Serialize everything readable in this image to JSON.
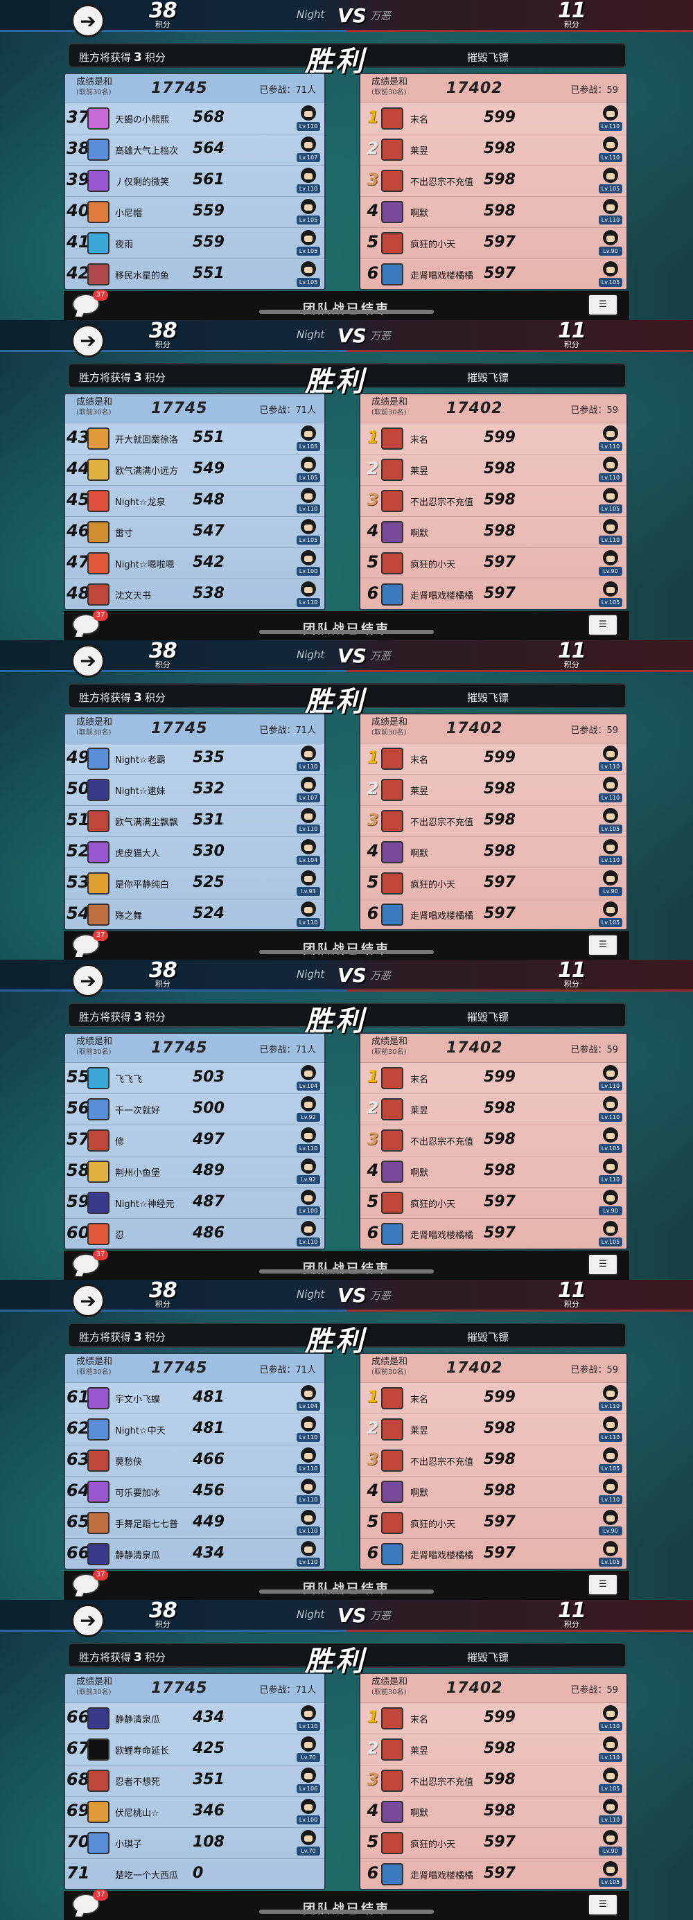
{
  "screens": [
    {
      "header": {
        "left_score": "38",
        "left_score_label": "积分",
        "left_team": "Night",
        "vs": "VS",
        "right_team": "万恶",
        "right_score": "11",
        "right_score_label": "积分"
      },
      "banner": {
        "winner_text_pre": "胜方将获得",
        "winner_points": "3",
        "winner_text_post": "积分",
        "result": "胜利",
        "right_text": "摧毁飞镖"
      },
      "left_panel": {
        "group": "成绩是和",
        "group_sub": "(取前30名)",
        "power": "17745",
        "joined": "已参战：71人",
        "rows": [
          {
            "rank": "37",
            "name": "天蝎の小熙熙",
            "power": "568",
            "level": "Lv.110",
            "avatar_color": "#c76ad6"
          },
          {
            "rank": "38",
            "name": "高雄大气上档次",
            "power": "564",
            "level": "Lv.107",
            "avatar_color": "#5a8ed8"
          },
          {
            "rank": "39",
            "name": "丿仅剩的微笑",
            "power": "561",
            "level": "Lv.110",
            "avatar_color": "#9a58d0"
          },
          {
            "rank": "40",
            "name": "小尼帽",
            "power": "559",
            "level": "Lv.105",
            "avatar_color": "#e07a3a"
          },
          {
            "rank": "41",
            "name": "夜雨",
            "power": "559",
            "level": "Lv.105",
            "avatar_color": "#3aa8d8"
          },
          {
            "rank": "42",
            "name": "移民水星的鱼",
            "power": "551",
            "level": "Lv.105",
            "avatar_color": "#b04a4a"
          }
        ]
      },
      "right_panel": {
        "group": "成绩是和",
        "group_sub": "(取前30名)",
        "power": "17402",
        "joined": "已参战：59",
        "rows": [
          {
            "rank": "1",
            "name": "末名",
            "power": "599",
            "level": "Lv.110",
            "avatar_color": "#c0463a"
          },
          {
            "rank": "2",
            "name": "莱昱",
            "power": "598",
            "level": "Lv.110",
            "avatar_color": "#c0463a"
          },
          {
            "rank": "3",
            "name": "不出忍宗不充值",
            "power": "598",
            "level": "Lv.105",
            "avatar_color": "#c0463a"
          },
          {
            "rank": "4",
            "name": "啊默",
            "power": "598",
            "level": "Lv.110",
            "avatar_color": "#7a4a9a"
          },
          {
            "rank": "5",
            "name": "疯狂的小天",
            "power": "597",
            "level": "Lv.90",
            "avatar_color": "#c0463a"
          },
          {
            "rank": "6",
            "name": "走肾唱戏楼橘橘",
            "power": "597",
            "level": "Lv.105",
            "avatar_color": "#3a7ac0"
          }
        ]
      },
      "footer": {
        "chat_badge": "37",
        "status": "团队战已结束"
      }
    },
    {
      "header": {
        "left_score": "38",
        "left_score_label": "积分",
        "left_team": "Night",
        "vs": "VS",
        "right_team": "万恶",
        "right_score": "11",
        "right_score_label": "积分"
      },
      "banner": {
        "winner_text_pre": "胜方将获得",
        "winner_points": "3",
        "winner_text_post": "积分",
        "result": "胜利",
        "right_text": "摧毁飞镖"
      },
      "left_panel": {
        "group": "成绩是和",
        "group_sub": "(取前30名)",
        "power": "17745",
        "joined": "已参战：71人",
        "rows": [
          {
            "rank": "43",
            "name": "开大就回案徐洛",
            "power": "551",
            "level": "Lv.105",
            "avatar_color": "#e09a3a"
          },
          {
            "rank": "44",
            "name": "欧气满满小远方",
            "power": "549",
            "level": "Lv.105",
            "avatar_color": "#e0b040"
          },
          {
            "rank": "45",
            "name": "Night☆龙泉",
            "power": "548",
            "level": "Lv.110",
            "avatar_color": "#e0503a"
          },
          {
            "rank": "46",
            "name": "雷寸",
            "power": "547",
            "level": "Lv.105",
            "avatar_color": "#d09030"
          },
          {
            "rank": "47",
            "name": "Night☆嗯啦嗯",
            "power": "542",
            "level": "Lv.100",
            "avatar_color": "#e05a3a"
          },
          {
            "rank": "48",
            "name": "沈文天书",
            "power": "538",
            "level": "Lv.110",
            "avatar_color": "#c0463a"
          }
        ]
      },
      "right_panel": {
        "group": "成绩是和",
        "group_sub": "(取前30名)",
        "power": "17402",
        "joined": "已参战：59",
        "rows": [
          {
            "rank": "1",
            "name": "末名",
            "power": "599",
            "level": "Lv.110",
            "avatar_color": "#c0463a"
          },
          {
            "rank": "2",
            "name": "莱昱",
            "power": "598",
            "level": "Lv.110",
            "avatar_color": "#c0463a"
          },
          {
            "rank": "3",
            "name": "不出忍宗不充值",
            "power": "598",
            "level": "Lv.105",
            "avatar_color": "#c0463a"
          },
          {
            "rank": "4",
            "name": "啊默",
            "power": "598",
            "level": "Lv.110",
            "avatar_color": "#7a4a9a"
          },
          {
            "rank": "5",
            "name": "疯狂的小天",
            "power": "597",
            "level": "Lv.90",
            "avatar_color": "#c0463a"
          },
          {
            "rank": "6",
            "name": "走肾唱戏楼橘橘",
            "power": "597",
            "level": "Lv.105",
            "avatar_color": "#3a7ac0"
          }
        ]
      },
      "footer": {
        "chat_badge": "37",
        "status": "团队战已结束"
      }
    },
    {
      "header": {
        "left_score": "38",
        "left_score_label": "积分",
        "left_team": "Night",
        "vs": "VS",
        "right_team": "万恶",
        "right_score": "11",
        "right_score_label": "积分"
      },
      "banner": {
        "winner_text_pre": "胜方将获得",
        "winner_points": "3",
        "winner_text_post": "积分",
        "result": "胜利",
        "right_text": "摧毁飞镖"
      },
      "left_panel": {
        "group": "成绩是和",
        "group_sub": "(取前30名)",
        "power": "17745",
        "joined": "已参战：71人",
        "rows": [
          {
            "rank": "49",
            "name": "Night☆老霸",
            "power": "535",
            "level": "Lv.110",
            "avatar_color": "#5a8ed8"
          },
          {
            "rank": "50",
            "name": "Night☆逮妹",
            "power": "532",
            "level": "Lv.107",
            "avatar_color": "#3a3a8a"
          },
          {
            "rank": "51",
            "name": "欧气满满尘飘飘",
            "power": "531",
            "level": "Lv.110",
            "avatar_color": "#c0463a"
          },
          {
            "rank": "52",
            "name": "虎皮猫大人",
            "power": "530",
            "level": "Lv.104",
            "avatar_color": "#9a58d0"
          },
          {
            "rank": "53",
            "name": "是你平静纯白",
            "power": "525",
            "level": "Lv.93",
            "avatar_color": "#e0a030"
          },
          {
            "rank": "54",
            "name": "殇之舞",
            "power": "524",
            "level": "Lv.110",
            "avatar_color": "#c07040"
          }
        ]
      },
      "right_panel": {
        "group": "成绩是和",
        "group_sub": "(取前30名)",
        "power": "17402",
        "joined": "已参战：59",
        "rows": [
          {
            "rank": "1",
            "name": "末名",
            "power": "599",
            "level": "Lv.110",
            "avatar_color": "#c0463a"
          },
          {
            "rank": "2",
            "name": "莱昱",
            "power": "598",
            "level": "Lv.110",
            "avatar_color": "#c0463a"
          },
          {
            "rank": "3",
            "name": "不出忍宗不充值",
            "power": "598",
            "level": "Lv.105",
            "avatar_color": "#c0463a"
          },
          {
            "rank": "4",
            "name": "啊默",
            "power": "598",
            "level": "Lv.110",
            "avatar_color": "#7a4a9a"
          },
          {
            "rank": "5",
            "name": "疯狂的小天",
            "power": "597",
            "level": "Lv.90",
            "avatar_color": "#c0463a"
          },
          {
            "rank": "6",
            "name": "走肾唱戏楼橘橘",
            "power": "597",
            "level": "Lv.105",
            "avatar_color": "#3a7ac0"
          }
        ]
      },
      "footer": {
        "chat_badge": "37",
        "status": "团队战已结束"
      }
    },
    {
      "header": {
        "left_score": "38",
        "left_score_label": "积分",
        "left_team": "Night",
        "vs": "VS",
        "right_team": "万恶",
        "right_score": "11",
        "right_score_label": "积分"
      },
      "banner": {
        "winner_text_pre": "胜方将获得",
        "winner_points": "3",
        "winner_text_post": "积分",
        "result": "胜利",
        "right_text": "摧毁飞镖"
      },
      "left_panel": {
        "group": "成绩是和",
        "group_sub": "(取前30名)",
        "power": "17745",
        "joined": "已参战：71人",
        "rows": [
          {
            "rank": "55",
            "name": "飞飞飞",
            "power": "503",
            "level": "Lv.104",
            "avatar_color": "#3aa8d8"
          },
          {
            "rank": "56",
            "name": "干一次就好",
            "power": "500",
            "level": "Lv.92",
            "avatar_color": "#5a8ed8"
          },
          {
            "rank": "57",
            "name": "修",
            "power": "497",
            "level": "Lv.110",
            "avatar_color": "#c0463a"
          },
          {
            "rank": "58",
            "name": "荆州小鱼堡",
            "power": "489",
            "level": "Lv.92",
            "avatar_color": "#e0b040"
          },
          {
            "rank": "59",
            "name": "Night☆神经元",
            "power": "487",
            "level": "Lv.100",
            "avatar_color": "#3a3a8a"
          },
          {
            "rank": "60",
            "name": "忍",
            "power": "486",
            "level": "Lv.110",
            "avatar_color": "#e05a3a"
          }
        ]
      },
      "right_panel": {
        "group": "成绩是和",
        "group_sub": "(取前30名)",
        "power": "17402",
        "joined": "已参战：59",
        "rows": [
          {
            "rank": "1",
            "name": "末名",
            "power": "599",
            "level": "Lv.110",
            "avatar_color": "#c0463a"
          },
          {
            "rank": "2",
            "name": "莱昱",
            "power": "598",
            "level": "Lv.110",
            "avatar_color": "#c0463a"
          },
          {
            "rank": "3",
            "name": "不出忍宗不充值",
            "power": "598",
            "level": "Lv.105",
            "avatar_color": "#c0463a"
          },
          {
            "rank": "4",
            "name": "啊默",
            "power": "598",
            "level": "Lv.110",
            "avatar_color": "#7a4a9a"
          },
          {
            "rank": "5",
            "name": "疯狂的小天",
            "power": "597",
            "level": "Lv.90",
            "avatar_color": "#c0463a"
          },
          {
            "rank": "6",
            "name": "走肾唱戏楼橘橘",
            "power": "597",
            "level": "Lv.105",
            "avatar_color": "#3a7ac0"
          }
        ]
      },
      "footer": {
        "chat_badge": "37",
        "status": "团队战已结束"
      }
    },
    {
      "header": {
        "left_score": "38",
        "left_score_label": "积分",
        "left_team": "Night",
        "vs": "VS",
        "right_team": "万恶",
        "right_score": "11",
        "right_score_label": "积分"
      },
      "banner": {
        "winner_text_pre": "胜方将获得",
        "winner_points": "3",
        "winner_text_post": "积分",
        "result": "胜利",
        "right_text": "摧毁飞镖"
      },
      "left_panel": {
        "group": "成绩是和",
        "group_sub": "(取前30名)",
        "power": "17745",
        "joined": "已参战：71人",
        "rows": [
          {
            "rank": "61",
            "name": "宇文小飞蝶",
            "power": "481",
            "level": "Lv.104",
            "avatar_color": "#9a58d0"
          },
          {
            "rank": "62",
            "name": "Night☆中天",
            "power": "481",
            "level": "Lv.110",
            "avatar_color": "#5a8ed8"
          },
          {
            "rank": "63",
            "name": "莫愁侠",
            "power": "466",
            "level": "Lv.110",
            "avatar_color": "#c0463a"
          },
          {
            "rank": "64",
            "name": "可乐要加冰",
            "power": "456",
            "level": "Lv.110",
            "avatar_color": "#9a58d0"
          },
          {
            "rank": "65",
            "name": "手舞足蹈七七普",
            "power": "449",
            "level": "Lv.110",
            "avatar_color": "#c07040"
          },
          {
            "rank": "66",
            "name": "静静清泉瓜",
            "power": "434",
            "level": "Lv.110",
            "avatar_color": "#3a3a8a"
          }
        ]
      },
      "right_panel": {
        "group": "成绩是和",
        "group_sub": "(取前30名)",
        "power": "17402",
        "joined": "已参战：59",
        "rows": [
          {
            "rank": "1",
            "name": "末名",
            "power": "599",
            "level": "Lv.110",
            "avatar_color": "#c0463a"
          },
          {
            "rank": "2",
            "name": "莱昱",
            "power": "598",
            "level": "Lv.110",
            "avatar_color": "#c0463a"
          },
          {
            "rank": "3",
            "name": "不出忍宗不充值",
            "power": "598",
            "level": "Lv.105",
            "avatar_color": "#c0463a"
          },
          {
            "rank": "4",
            "name": "啊默",
            "power": "598",
            "level": "Lv.110",
            "avatar_color": "#7a4a9a"
          },
          {
            "rank": "5",
            "name": "疯狂的小天",
            "power": "597",
            "level": "Lv.90",
            "avatar_color": "#c0463a"
          },
          {
            "rank": "6",
            "name": "走肾唱戏楼橘橘",
            "power": "597",
            "level": "Lv.105",
            "avatar_color": "#3a7ac0"
          }
        ]
      },
      "footer": {
        "chat_badge": "37",
        "status": "团队战已结束"
      }
    },
    {
      "header": {
        "left_score": "38",
        "left_score_label": "积分",
        "left_team": "Night",
        "vs": "VS",
        "right_team": "万恶",
        "right_score": "11",
        "right_score_label": "积分"
      },
      "banner": {
        "winner_text_pre": "胜方将获得",
        "winner_points": "3",
        "winner_text_post": "积分",
        "result": "胜利",
        "right_text": "摧毁飞镖"
      },
      "left_panel": {
        "group": "成绩是和",
        "group_sub": "(取前30名)",
        "power": "17745",
        "joined": "已参战：71人",
        "rows": [
          {
            "rank": "66",
            "name": "静静清泉瓜",
            "power": "434",
            "level": "Lv.110",
            "avatar_color": "#3a3a8a"
          },
          {
            "rank": "67",
            "name": "欧鲤寿命延长",
            "power": "425",
            "level": "Lv.70",
            "avatar_color": "#111111"
          },
          {
            "rank": "68",
            "name": "忍者不想死",
            "power": "351",
            "level": "Lv.106",
            "avatar_color": "#c0463a"
          },
          {
            "rank": "69",
            "name": "伏尼桃山☆",
            "power": "346",
            "level": "Lv.100",
            "avatar_color": "#e09a3a"
          },
          {
            "rank": "70",
            "name": "小琪子",
            "power": "108",
            "level": "Lv.70",
            "avatar_color": "#5a8ed8"
          },
          {
            "rank": "71",
            "name": "楚吃一个大西瓜",
            "power": "0",
            "level": "",
            "avatar_color": ""
          }
        ]
      },
      "right_panel": {
        "group": "成绩是和",
        "group_sub": "(取前30名)",
        "power": "17402",
        "joined": "已参战：59",
        "rows": [
          {
            "rank": "1",
            "name": "末名",
            "power": "599",
            "level": "Lv.110",
            "avatar_color": "#c0463a"
          },
          {
            "rank": "2",
            "name": "莱昱",
            "power": "598",
            "level": "Lv.110",
            "avatar_color": "#c0463a"
          },
          {
            "rank": "3",
            "name": "不出忍宗不充值",
            "power": "598",
            "level": "Lv.105",
            "avatar_color": "#c0463a"
          },
          {
            "rank": "4",
            "name": "啊默",
            "power": "598",
            "level": "Lv.110",
            "avatar_color": "#7a4a9a"
          },
          {
            "rank": "5",
            "name": "疯狂的小天",
            "power": "597",
            "level": "Lv.90",
            "avatar_color": "#c0463a"
          },
          {
            "rank": "6",
            "name": "走肾唱戏楼橘橘",
            "power": "597",
            "level": "Lv.105",
            "avatar_color": "#3a7ac0"
          }
        ]
      },
      "footer": {
        "chat_badge": "37",
        "status": "团队战已结束"
      }
    }
  ],
  "icons": {
    "back": "back-arrow-icon",
    "chat": "chat-bubble-icon",
    "team": "team-battle-icon",
    "ninja": "ninja-avatar-icon"
  }
}
